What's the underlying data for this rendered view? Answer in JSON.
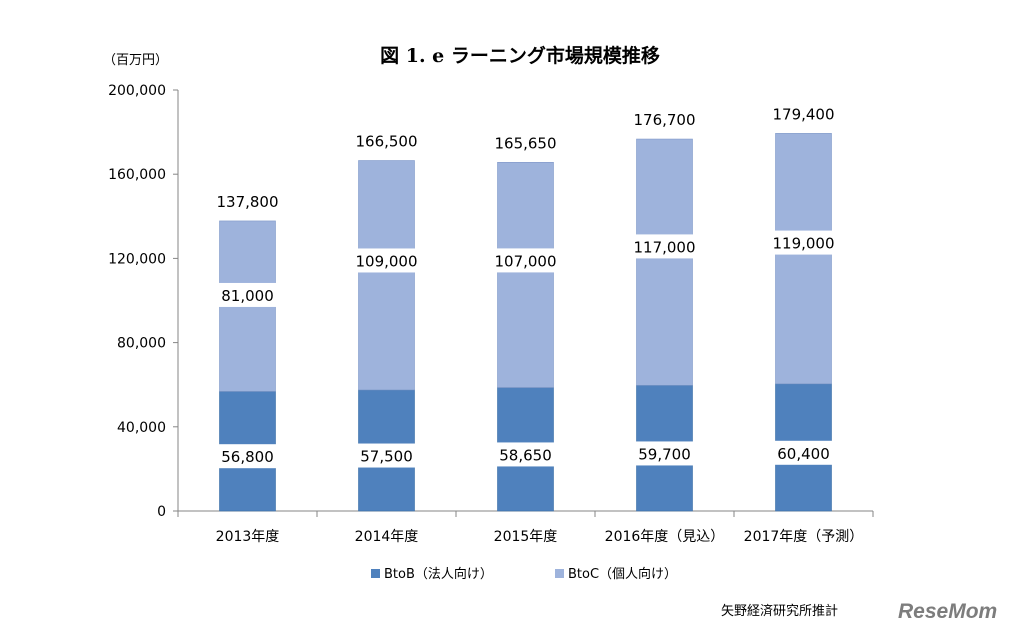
{
  "chart_data": {
    "type": "bar",
    "stacked": true,
    "title": "図 1. e ラーニング市場規模推移",
    "unit_label": "（百万円）",
    "categories": [
      "2013年度",
      "2014年度",
      "2015年度",
      "2016年度（見込）",
      "2017年度（予測）"
    ],
    "series": [
      {
        "name": "BtoB（法人向け）",
        "color": "#4f81bd",
        "values": [
          56800,
          57500,
          58650,
          59700,
          60400
        ],
        "labels": [
          "56,800",
          "57,500",
          "58,650",
          "59,700",
          "60,400"
        ]
      },
      {
        "name": "BtoC（個人向け）",
        "color": "#9eb3dc",
        "values": [
          81000,
          109000,
          107000,
          117000,
          119000
        ],
        "labels": [
          "81,000",
          "109,000",
          "107,000",
          "117,000",
          "119,000"
        ]
      }
    ],
    "totals": [
      "137,800",
      "166,500",
      "165,650",
      "176,700",
      "179,400"
    ],
    "ylim": [
      0,
      200000
    ],
    "yticks": [
      0,
      40000,
      80000,
      120000,
      160000,
      200000
    ],
    "ytick_labels": [
      "0",
      "40,000",
      "80,000",
      "120,000",
      "160,000",
      "200,000"
    ],
    "xlabel": "",
    "ylabel": "",
    "grid": false,
    "legend_position": "bottom"
  },
  "source": "矢野経済研究所推計",
  "logo": "ReseMom"
}
